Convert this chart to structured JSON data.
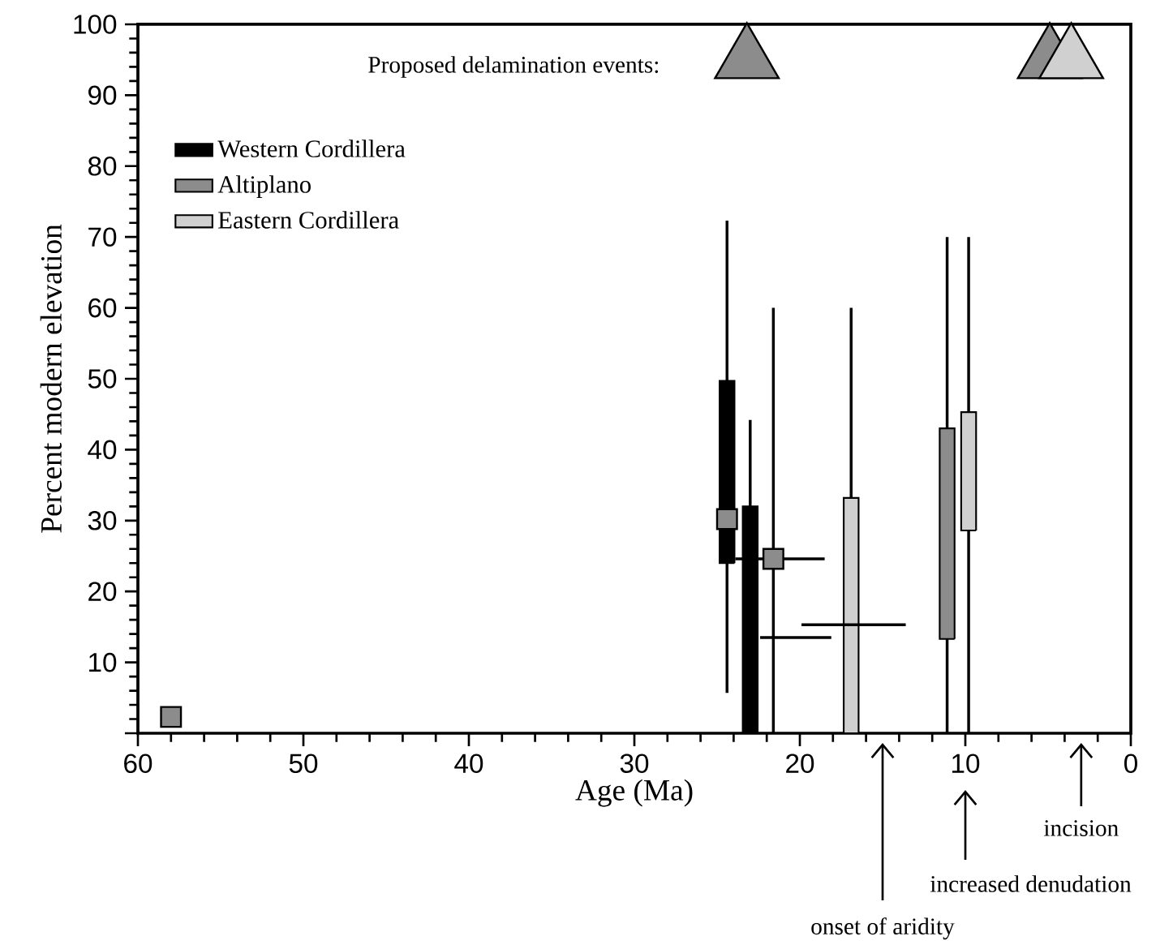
{
  "chart_data": {
    "type": "bar",
    "xlabel": "Age (Ma)",
    "ylabel": "Percent modern elevation",
    "xlim": [
      60,
      0
    ],
    "xticks": [
      60,
      50,
      40,
      30,
      20,
      10,
      0
    ],
    "ylim": [
      0,
      100
    ],
    "yticks": [
      {
        "value": 0,
        "label": null
      },
      10,
      20,
      30,
      40,
      50,
      60,
      70,
      80,
      90,
      100
    ],
    "legend": "top left",
    "grid": false,
    "annotations": [
      "Proposed delamination events:",
      "onset of aridity",
      "increased denudation",
      "incision"
    ],
    "series": [
      {
        "name": "Western Cordillera",
        "color": "#000000",
        "x": [
          24.4,
          23
        ],
        "base": [
          24,
          0
        ],
        "values": [
          25.7,
          32
        ],
        "errors": [
          [
            5.7,
            72.3
          ],
          [
            0,
            44.2
          ]
        ]
      },
      {
        "name": "Altiplano",
        "color": "#8c8c8c",
        "x": [
          11.1
        ],
        "base": [
          13.3
        ],
        "values": [
          29.7
        ],
        "errors": [
          [
            0,
            70
          ]
        ]
      },
      {
        "name": "Eastern Cordillera",
        "color": "#d0d0d0",
        "x": [
          16.9,
          9.8
        ],
        "base": [
          0,
          28.6
        ],
        "values": [
          33.2,
          16.7
        ],
        "errors": [
          [
            0,
            60
          ],
          [
            0,
            70
          ]
        ]
      },
      {
        "type": "scatter",
        "marker": "square",
        "color": "#8c8c8c",
        "x": [
          58,
          24.4,
          21.6
        ],
        "values": [
          2.3,
          30.2,
          24.6
        ],
        "errors": [
          null,
          null,
          [
            0,
            60
          ]
        ],
        "xerrors": [
          null,
          null,
          [
            18.5,
            23.9
          ]
        ]
      },
      {
        "type": "line",
        "color": "#000000",
        "x": [
          22.4,
          18.1
        ],
        "values": [
          13.5,
          13.5
        ]
      },
      {
        "type": "line",
        "color": "#000000",
        "x": [
          19.9,
          13.6
        ],
        "values": [
          15.3,
          15.3
        ]
      },
      {
        "type": "scatter",
        "marker": "triangle",
        "color": "#8c8c8c",
        "x": [
          23.2,
          4.9
        ],
        "values": [
          95,
          95
        ]
      },
      {
        "type": "scatter",
        "marker": "triangle",
        "color": "#d0d0d0",
        "x": [
          3.6
        ],
        "values": [
          95
        ]
      }
    ]
  }
}
